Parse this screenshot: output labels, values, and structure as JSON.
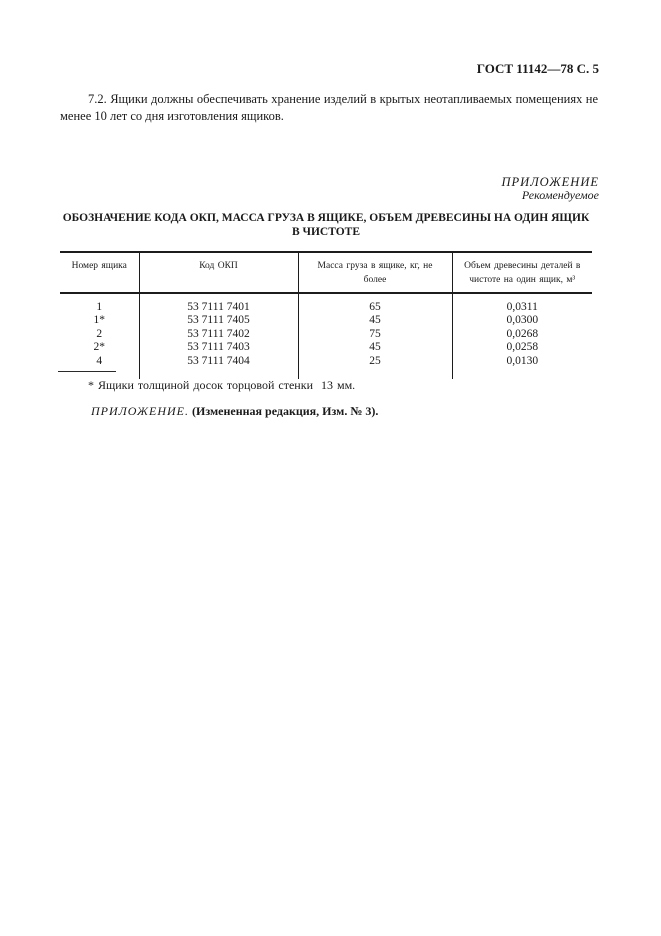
{
  "doc": {
    "header_right": "ГОСТ 11142—78 С. 5",
    "paragraph": "7.2. Ящики должны обеспечивать хранение изделий в крытых неотапливаемых помещениях не менее 10 лет со дня изготовления ящиков.",
    "appendix": {
      "label": "ПРИЛОЖЕНИЕ",
      "sublabel": "Рекомендуемое"
    },
    "title_line1": "ОБОЗНАЧЕНИЕ КОДА ОКП, МАССА ГРУЗА В ЯЩИКЕ, ОБЪЕМ ДРЕВЕСИНЫ НА ОДИН ЯЩИК",
    "title_line2": "В ЧИСТОТЕ",
    "footnote": "* Ящики толщиной досок торцовой стенки  13 мм.",
    "amendment": {
      "italic_part": "ПРИЛОЖЕНИЕ.",
      "bold_part": "(Измененная редакция, Изм. № 3)."
    }
  },
  "table": {
    "columns": [
      "Номер ящика",
      "Код ОКП",
      "Масса груза в ящике, кг, не более",
      "Объем древесины деталей в чистоте на один ящик, м³"
    ],
    "rows": [
      [
        "1",
        "53 7111 7401",
        "65",
        "0,0311"
      ],
      [
        "1*",
        "53 7111 7405",
        "45",
        "0,0300"
      ],
      [
        "2",
        "53 7111 7402",
        "75",
        "0,0268"
      ],
      [
        "2*",
        "53 7111 7403",
        "45",
        "0,0258"
      ],
      [
        "4",
        "53 7111 7404",
        "25",
        "0,0130"
      ]
    ]
  },
  "colors": {
    "page_background": "#ffffff",
    "text": "#1a1a1a",
    "rule": "#1c1c1c"
  }
}
